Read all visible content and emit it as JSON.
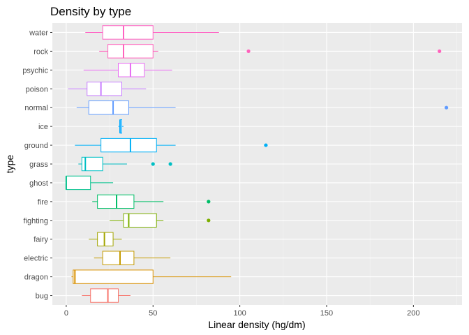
{
  "chart_data": {
    "type": "boxplot",
    "orientation": "horizontal",
    "title": "Density by type",
    "xlabel": "Linear density (hg/dm)",
    "ylabel": "type",
    "xlim": [
      -8,
      228
    ],
    "x_ticks": [
      0,
      50,
      100,
      150,
      200
    ],
    "grid": true,
    "legend": "none",
    "categories": [
      "water",
      "rock",
      "psychic",
      "poison",
      "normal",
      "ice",
      "ground",
      "grass",
      "ghost",
      "fire",
      "fighting",
      "fairy",
      "electric",
      "dragon",
      "bug"
    ],
    "series": [
      {
        "category": "water",
        "color": "#ff61c3",
        "whisker_low": 11,
        "q1": 21,
        "median": 33,
        "q3": 50,
        "whisker_high": 88,
        "outliers": []
      },
      {
        "category": "rock",
        "color": "#ff62bc",
        "whisker_low": 19,
        "q1": 24,
        "median": 33,
        "q3": 50,
        "whisker_high": 53,
        "outliers": [
          105,
          215
        ]
      },
      {
        "category": "psychic",
        "color": "#e76bf3",
        "whisker_low": 10,
        "q1": 30,
        "median": 37,
        "q3": 45,
        "whisker_high": 61,
        "outliers": []
      },
      {
        "category": "poison",
        "color": "#c77cff",
        "whisker_low": 1,
        "q1": 12,
        "median": 20,
        "q3": 32,
        "whisker_high": 46,
        "outliers": []
      },
      {
        "category": "normal",
        "color": "#619cff",
        "whisker_low": 6,
        "q1": 13,
        "median": 27,
        "q3": 36,
        "whisker_high": 63,
        "outliers": [
          219
        ]
      },
      {
        "category": "ice",
        "color": "#00a9ff",
        "whisker_low": 30,
        "q1": 31,
        "median": 31,
        "q3": 32,
        "whisker_high": 33,
        "outliers": []
      },
      {
        "category": "ground",
        "color": "#00b0f6",
        "whisker_low": 5,
        "q1": 20,
        "median": 37,
        "q3": 52,
        "whisker_high": 63,
        "outliers": [
          115
        ]
      },
      {
        "category": "grass",
        "color": "#00bfc4",
        "whisker_low": 7,
        "q1": 9,
        "median": 11,
        "q3": 21,
        "whisker_high": 35,
        "outliers": [
          50,
          60
        ]
      },
      {
        "category": "ghost",
        "color": "#00c08b",
        "whisker_low": 0,
        "q1": 0,
        "median": 0,
        "q3": 14,
        "whisker_high": 27,
        "outliers": []
      },
      {
        "category": "fire",
        "color": "#00be67",
        "whisker_low": 15,
        "q1": 18,
        "median": 29,
        "q3": 39,
        "whisker_high": 56,
        "outliers": [
          82
        ]
      },
      {
        "category": "fighting",
        "color": "#7cae00",
        "whisker_low": 25,
        "q1": 33,
        "median": 36,
        "q3": 52,
        "whisker_high": 56,
        "outliers": [
          82
        ]
      },
      {
        "category": "fairy",
        "color": "#a3a500",
        "whisker_low": 13,
        "q1": 18,
        "median": 22,
        "q3": 27,
        "whisker_high": 32,
        "outliers": []
      },
      {
        "category": "electric",
        "color": "#c49a00",
        "whisker_low": 16,
        "q1": 21,
        "median": 31,
        "q3": 39,
        "whisker_high": 60,
        "outliers": []
      },
      {
        "category": "dragon",
        "color": "#d89000",
        "whisker_low": 3,
        "q1": 4,
        "median": 5,
        "q3": 50,
        "whisker_high": 95,
        "outliers": []
      },
      {
        "category": "bug",
        "color": "#f8766d",
        "whisker_low": 9,
        "q1": 14,
        "median": 24,
        "q3": 30,
        "whisker_high": 37,
        "outliers": []
      }
    ]
  }
}
